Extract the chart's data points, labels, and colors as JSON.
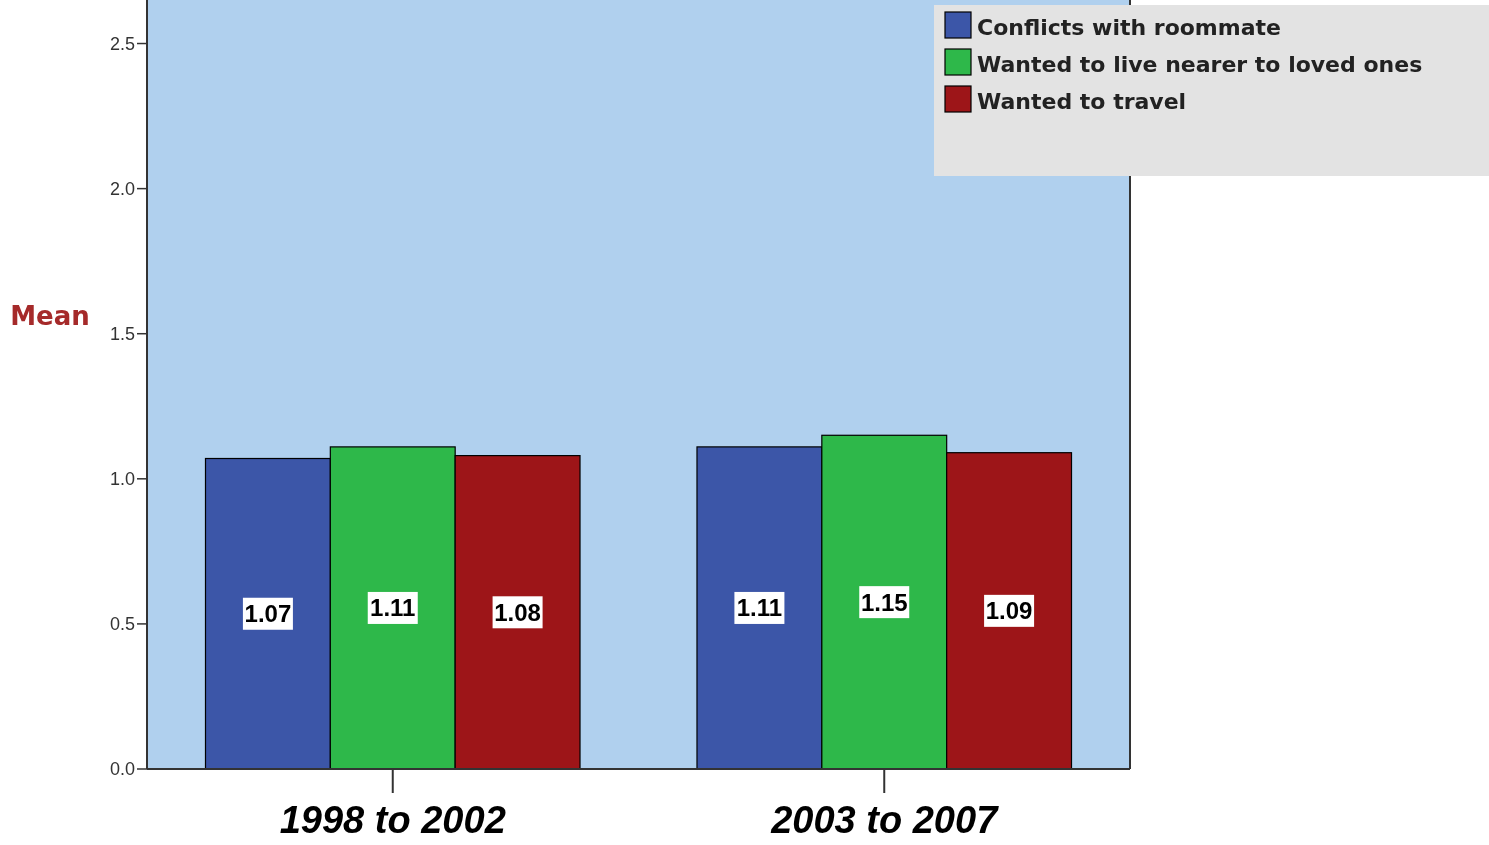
{
  "chart_data": {
    "type": "bar",
    "ylabel": "Mean",
    "categories": [
      "1998 to 2002",
      "2003 to 2007"
    ],
    "series": [
      {
        "name": "Conflicts with roommate",
        "color": "#3c56a8",
        "values": [
          1.07,
          1.11
        ]
      },
      {
        "name": "Wanted to live nearer to loved ones",
        "color": "#2eb84a",
        "values": [
          1.11,
          1.15
        ]
      },
      {
        "name": "Wanted to travel",
        "color": "#9d1518",
        "values": [
          1.08,
          1.09
        ]
      }
    ],
    "ylim": [
      0,
      2.65
    ],
    "yticks": [
      {
        "value": 0,
        "label": "0.0"
      },
      {
        "value": 0.5,
        "label": "0.5"
      },
      {
        "value": 1,
        "label": "1.0"
      },
      {
        "value": 1.5,
        "label": "1.5"
      },
      {
        "value": 2,
        "label": "2.0"
      },
      {
        "value": 2.5,
        "label": "2.5"
      }
    ],
    "data_labels": true,
    "legend": "top right",
    "grid": false
  }
}
